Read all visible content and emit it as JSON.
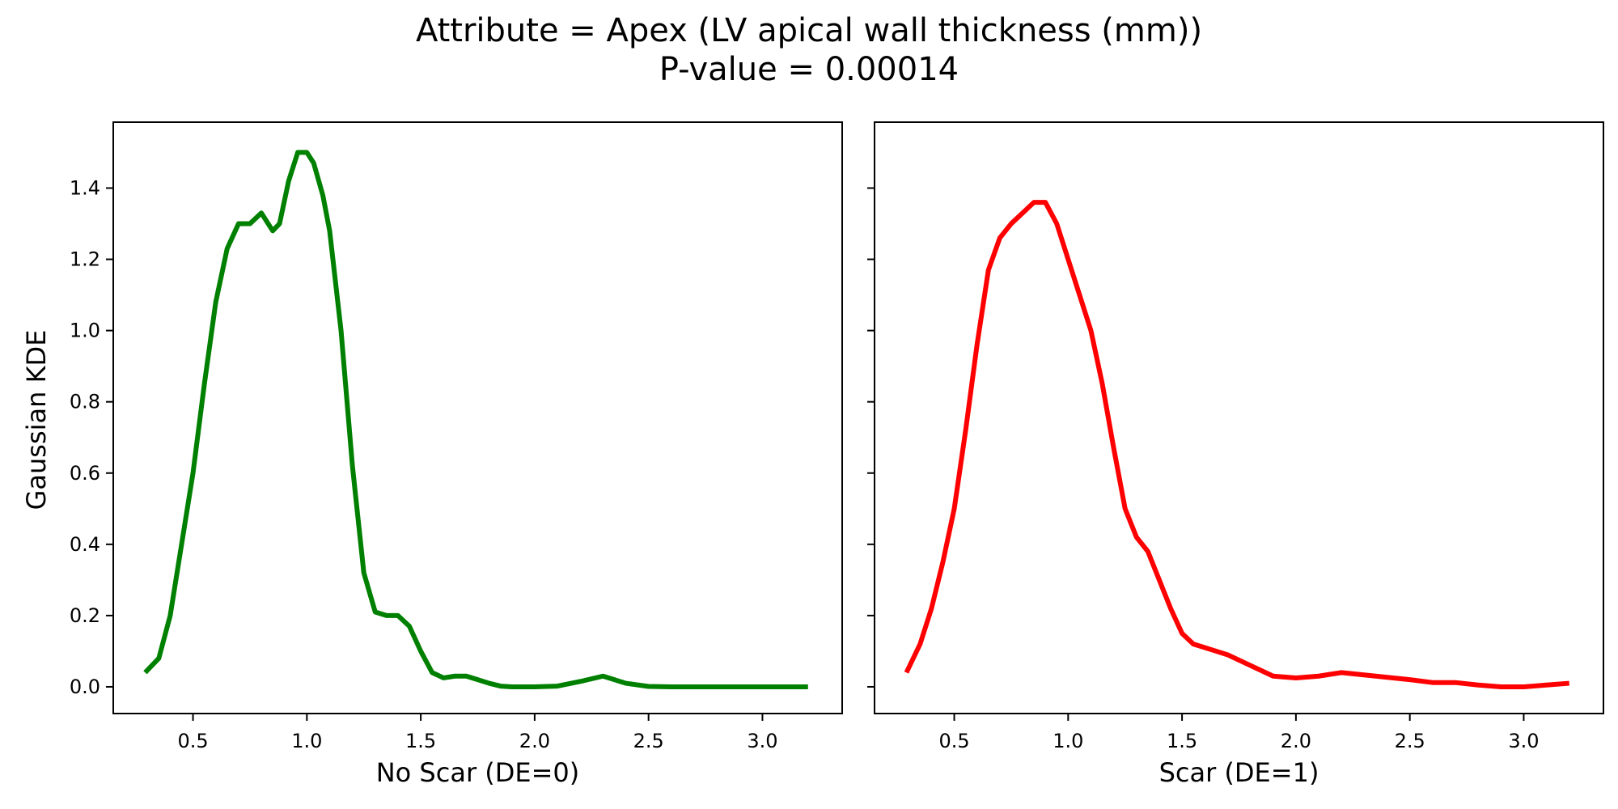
{
  "figure": {
    "title": "Attribute = Apex (LV apical wall thickness (mm))",
    "subtitle": "P-value = 0.00014",
    "ylabel": "Gaussian KDE"
  },
  "chart_data": [
    {
      "type": "line",
      "xlabel": "No Scar (DE=0)",
      "ylabel": "Gaussian KDE",
      "xlim": [
        0.15,
        3.35
      ],
      "ylim": [
        -0.075,
        1.585
      ],
      "xticks": [
        0.5,
        1.0,
        1.5,
        2.0,
        2.5,
        3.0
      ],
      "xtick_labels": [
        "0.5",
        "1.0",
        "1.5",
        "2.0",
        "2.5",
        "3.0"
      ],
      "yticks": [
        0.0,
        0.2,
        0.4,
        0.6,
        0.8,
        1.0,
        1.2,
        1.4
      ],
      "ytick_labels": [
        "0.0",
        "0.2",
        "0.4",
        "0.6",
        "0.8",
        "1.0",
        "1.2",
        "1.4"
      ],
      "grid": false,
      "series": [
        {
          "color": "#008000",
          "x": [
            0.29,
            0.35,
            0.4,
            0.45,
            0.5,
            0.55,
            0.6,
            0.65,
            0.7,
            0.75,
            0.8,
            0.85,
            0.88,
            0.92,
            0.96,
            1.0,
            1.03,
            1.07,
            1.1,
            1.15,
            1.2,
            1.25,
            1.3,
            1.35,
            1.4,
            1.45,
            1.5,
            1.55,
            1.6,
            1.65,
            1.7,
            1.75,
            1.8,
            1.85,
            1.9,
            1.95,
            2.0,
            2.1,
            2.2,
            2.3,
            2.4,
            2.5,
            2.6,
            2.8,
            3.0,
            3.2
          ],
          "y": [
            0.04,
            0.08,
            0.2,
            0.4,
            0.6,
            0.85,
            1.08,
            1.23,
            1.3,
            1.3,
            1.33,
            1.28,
            1.3,
            1.42,
            1.5,
            1.5,
            1.47,
            1.38,
            1.28,
            1.0,
            0.62,
            0.32,
            0.21,
            0.2,
            0.2,
            0.17,
            0.1,
            0.04,
            0.025,
            0.03,
            0.03,
            0.02,
            0.01,
            0.002,
            0.0,
            0.0,
            0.0,
            0.002,
            0.015,
            0.03,
            0.01,
            0.001,
            0.0,
            0.0,
            0.0,
            0.0
          ]
        }
      ]
    },
    {
      "type": "line",
      "xlabel": "Scar (DE=1)",
      "xlim": [
        0.15,
        3.35
      ],
      "ylim": [
        -0.075,
        1.585
      ],
      "xticks": [
        0.5,
        1.0,
        1.5,
        2.0,
        2.5,
        3.0
      ],
      "xtick_labels": [
        "0.5",
        "1.0",
        "1.5",
        "2.0",
        "2.5",
        "3.0"
      ],
      "yticks": [
        0.0,
        0.2,
        0.4,
        0.6,
        0.8,
        1.0,
        1.2,
        1.4
      ],
      "grid": false,
      "series": [
        {
          "color": "#ff0000",
          "x": [
            0.29,
            0.35,
            0.4,
            0.45,
            0.5,
            0.55,
            0.6,
            0.65,
            0.7,
            0.75,
            0.8,
            0.85,
            0.9,
            0.95,
            1.0,
            1.05,
            1.1,
            1.15,
            1.2,
            1.25,
            1.3,
            1.35,
            1.4,
            1.45,
            1.5,
            1.55,
            1.6,
            1.65,
            1.7,
            1.8,
            1.9,
            2.0,
            2.1,
            2.2,
            2.35,
            2.5,
            2.6,
            2.7,
            2.8,
            2.9,
            3.0,
            3.1,
            3.2
          ],
          "y": [
            0.04,
            0.12,
            0.22,
            0.35,
            0.5,
            0.72,
            0.96,
            1.17,
            1.26,
            1.3,
            1.33,
            1.36,
            1.36,
            1.3,
            1.2,
            1.1,
            1.0,
            0.85,
            0.67,
            0.5,
            0.42,
            0.38,
            0.3,
            0.22,
            0.15,
            0.12,
            0.11,
            0.1,
            0.09,
            0.06,
            0.03,
            0.025,
            0.03,
            0.04,
            0.03,
            0.02,
            0.012,
            0.012,
            0.005,
            0.0,
            0.0,
            0.005,
            0.01
          ]
        }
      ]
    }
  ]
}
